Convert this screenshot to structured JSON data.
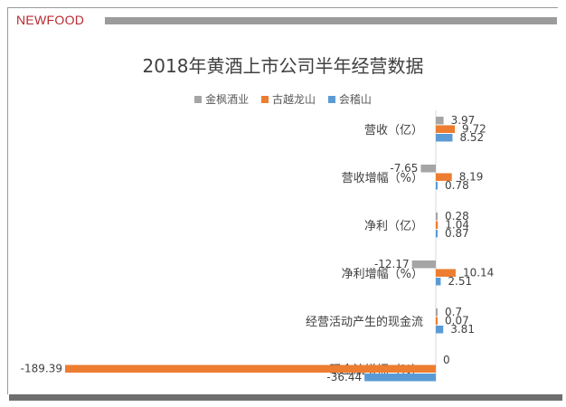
{
  "brand": "NEWFOOD",
  "chart_data": {
    "type": "bar",
    "orientation": "horizontal",
    "title": "2018年黄酒上市公司半年经营数据",
    "categories": [
      "营收（亿）",
      "营收增幅（%）",
      "净利（亿）",
      "净利增幅（%）",
      "经营活动产生的现金流",
      "现金流增幅（%）"
    ],
    "series": [
      {
        "name": "金枫酒业",
        "color": "#a5a5a5",
        "values": [
          3.97,
          -7.65,
          0.28,
          -12.17,
          0.7,
          0
        ],
        "labels": [
          "3.97",
          "-7.65",
          "0.28",
          "-12.17",
          "0.7",
          "0"
        ]
      },
      {
        "name": "古越龙山",
        "color": "#ed7d31",
        "values": [
          9.72,
          8.19,
          1.04,
          10.14,
          0.07,
          -189.39
        ],
        "labels": [
          "9.72",
          "8.19",
          "1.04",
          "10.14",
          "0.07",
          "-189.39"
        ]
      },
      {
        "name": "会稽山",
        "color": "#5b9bd5",
        "values": [
          8.52,
          0.78,
          0.87,
          2.51,
          3.81,
          -36.44
        ],
        "labels": [
          "8.52",
          "0.78",
          "0.87",
          "2.51",
          "3.81",
          "-36.44"
        ]
      }
    ],
    "xlabel": "",
    "ylabel": "",
    "xlim": [
      -195,
      10
    ],
    "grid": false,
    "legend": "top"
  }
}
